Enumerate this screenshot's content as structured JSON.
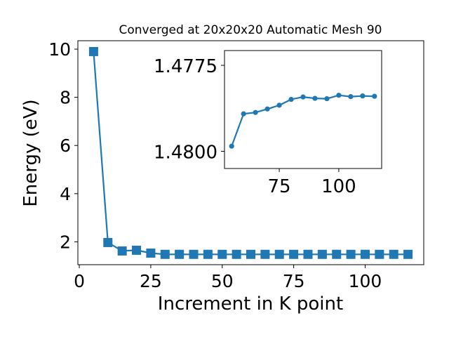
{
  "chart_data": [
    {
      "type": "line",
      "title": "Converged at 20x20x20 Automatic Mesh 90",
      "xlabel": "Increment in K point",
      "ylabel": "Energy (eV)",
      "xlim": [
        -0.5,
        120.5
      ],
      "ylim": [
        1.05,
        10.35
      ],
      "xticks": [
        0,
        25,
        50,
        75,
        100
      ],
      "yticks": [
        2,
        4,
        6,
        8,
        10
      ],
      "grid": false,
      "marker": "square",
      "color": "#1f77b4",
      "series": [
        {
          "x": [
            5,
            10,
            15,
            20,
            25,
            30,
            35,
            40,
            45,
            50,
            55,
            60,
            65,
            70,
            75,
            80,
            85,
            90,
            95,
            100,
            105,
            110,
            115
          ],
          "y": [
            9.9,
            1.97,
            1.62,
            1.65,
            1.53,
            1.48,
            1.48,
            1.48,
            1.48,
            1.48,
            1.48,
            1.48,
            1.48,
            1.48,
            1.48,
            1.48,
            1.48,
            1.48,
            1.48,
            1.48,
            1.48,
            1.48,
            1.48
          ]
        }
      ]
    },
    {
      "type": "line",
      "title": "",
      "xlabel": "",
      "ylabel": "",
      "inverted_y": true,
      "xlim": [
        52,
        118
      ],
      "ylim": [
        1.4805,
        1.47707
      ],
      "xticks": [
        75,
        100
      ],
      "yticks": [
        1.4775,
        1.48
      ],
      "ytick_labels": [
        "1.4775",
        "1.4800"
      ],
      "grid": false,
      "marker": "circle",
      "color": "#1f77b4",
      "series": [
        {
          "x": [
            55,
            60,
            65,
            70,
            75,
            80,
            85,
            90,
            95,
            100,
            105,
            110,
            115
          ],
          "y": [
            1.47985,
            1.47891,
            1.47887,
            1.47877,
            1.47866,
            1.47849,
            1.47842,
            1.47846,
            1.47847,
            1.47837,
            1.47841,
            1.47839,
            1.4784
          ]
        }
      ]
    }
  ]
}
